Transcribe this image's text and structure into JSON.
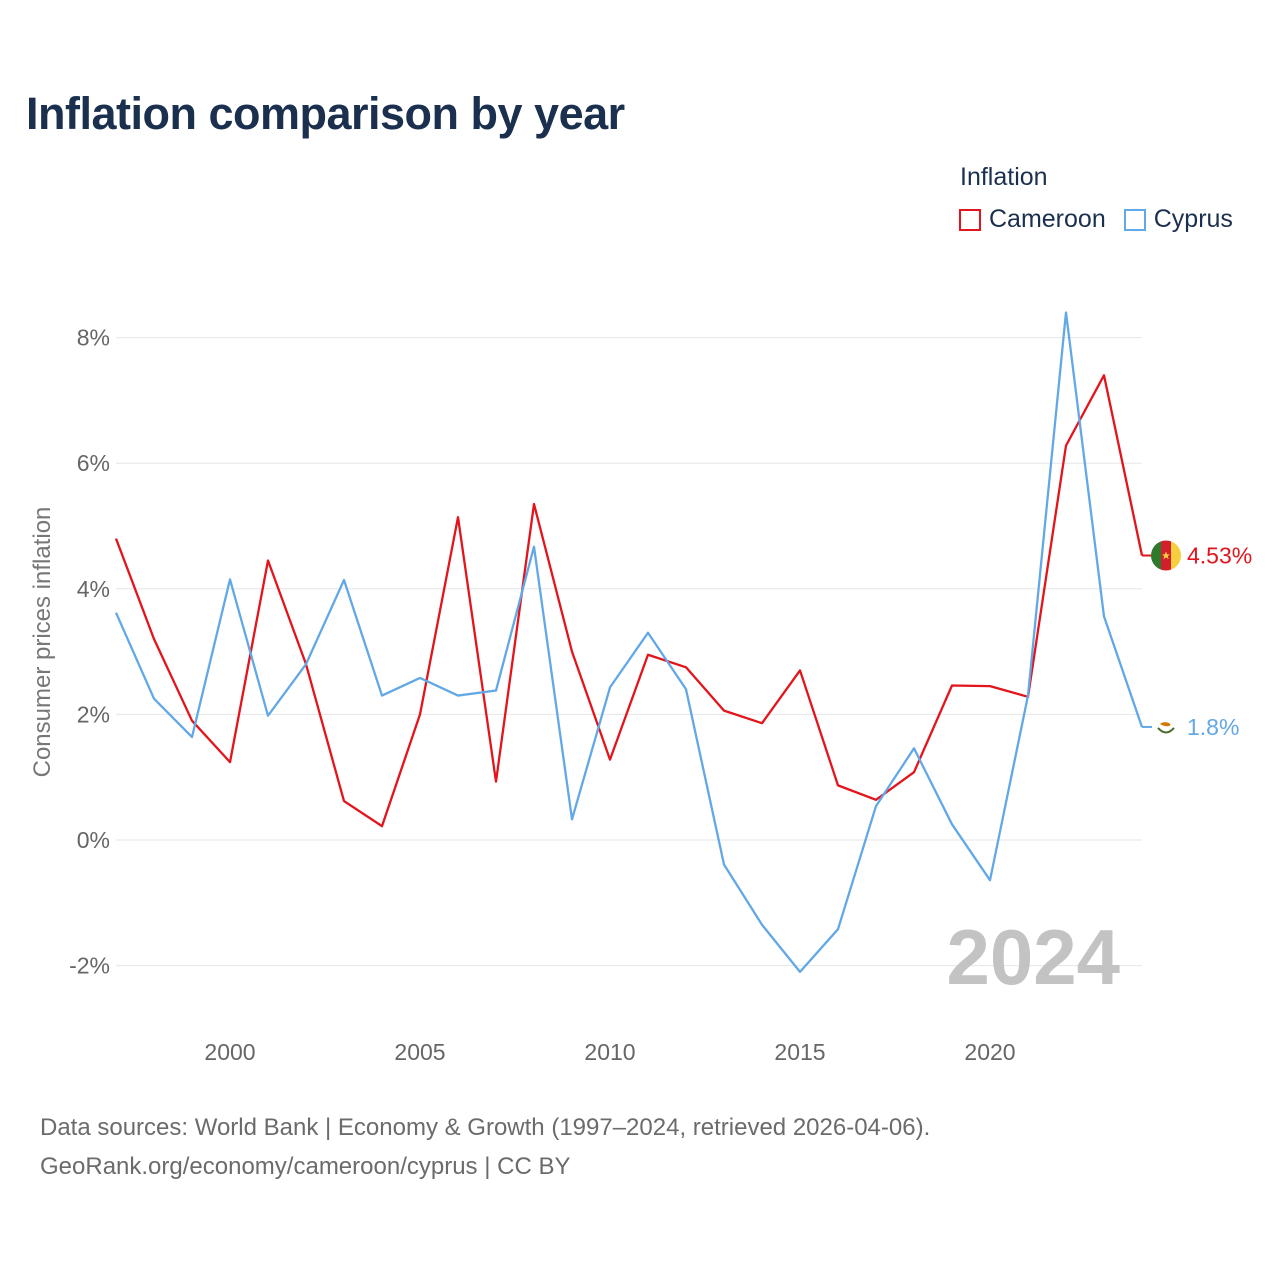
{
  "title": "Inflation comparison by year",
  "legend": {
    "title": "Inflation",
    "items": [
      {
        "label": "Cameroon",
        "color": "#e3141b"
      },
      {
        "label": "Cyprus",
        "color": "#63a8e6"
      }
    ]
  },
  "chart_data": {
    "type": "line",
    "title": "Inflation comparison by year",
    "xlabel": "",
    "ylabel": "Consumer prices inflation",
    "x": [
      1997,
      1998,
      1999,
      2000,
      2001,
      2002,
      2003,
      2004,
      2005,
      2006,
      2007,
      2008,
      2009,
      2010,
      2011,
      2012,
      2013,
      2014,
      2015,
      2016,
      2017,
      2018,
      2019,
      2020,
      2021,
      2022,
      2023,
      2024
    ],
    "xlim": [
      1997,
      2025
    ],
    "ylim": [
      -2.5,
      8.8
    ],
    "xticks": [
      2000,
      2005,
      2010,
      2015,
      2020
    ],
    "yticks": [
      -2,
      0,
      2,
      4,
      6,
      8
    ],
    "ytick_labels": [
      "-2%",
      "0%",
      "2%",
      "4%",
      "6%",
      "8%"
    ],
    "xtick_labels": [
      "2000",
      "2005",
      "2010",
      "2015",
      "2020"
    ],
    "series": [
      {
        "name": "Cameroon",
        "color": "#e3141b",
        "values": [
          4.8,
          3.2,
          1.9,
          1.24,
          4.45,
          2.8,
          0.62,
          0.22,
          2.0,
          5.14,
          0.93,
          5.35,
          3.0,
          1.28,
          2.95,
          2.75,
          2.06,
          1.86,
          2.7,
          0.87,
          0.64,
          1.08,
          2.46,
          2.45,
          2.28,
          6.28,
          7.4,
          4.53
        ],
        "end_label": "4.53%"
      },
      {
        "name": "Cyprus",
        "color": "#63a8e6",
        "values": [
          3.62,
          2.25,
          1.64,
          4.15,
          1.98,
          2.8,
          4.14,
          2.3,
          2.58,
          2.3,
          2.38,
          4.67,
          0.33,
          2.43,
          3.3,
          2.4,
          -0.39,
          -1.35,
          -2.1,
          -1.42,
          0.54,
          1.46,
          0.25,
          -0.64,
          2.3,
          8.4,
          3.56,
          1.8
        ],
        "end_label": "1.8%"
      }
    ],
    "year_watermark": "2024"
  },
  "source": {
    "line1": "Data sources: World Bank | Economy & Growth (1997–2024, retrieved 2026-04-06).",
    "line2": "GeoRank.org/economy/cameroon/cyprus | CC BY"
  }
}
